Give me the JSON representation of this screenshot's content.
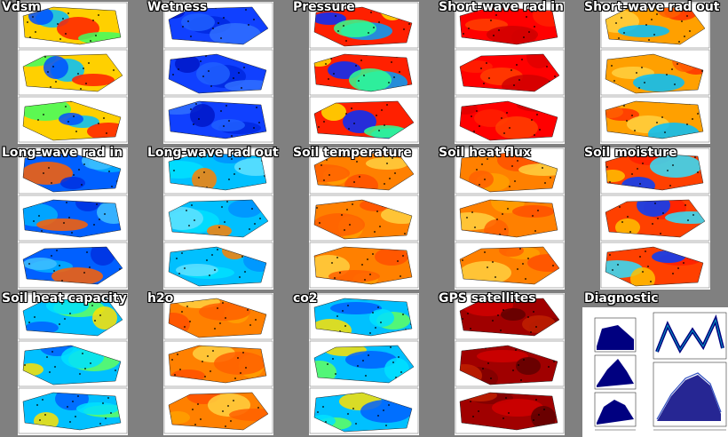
{
  "panels": [
    {
      "title": "Vdsm",
      "scheme": "mixed"
    },
    {
      "title": "Wetness",
      "scheme": "blue"
    },
    {
      "title": "Pressure",
      "scheme": "diag"
    },
    {
      "title": "Short-wave rad in",
      "scheme": "red"
    },
    {
      "title": "Short-wave rad out",
      "scheme": "warmcool"
    },
    {
      "title": "Long-wave rad in",
      "scheme": "bluewarm"
    },
    {
      "title": "Long-wave rad out",
      "scheme": "cyanwarm"
    },
    {
      "title": "Soil temperature",
      "scheme": "orange"
    },
    {
      "title": "Soil heat flux",
      "scheme": "orange"
    },
    {
      "title": "Soil moisture",
      "scheme": "redmix"
    },
    {
      "title": "Soil heat capacity",
      "scheme": "cyanmix"
    },
    {
      "title": "h2o",
      "scheme": "orange"
    },
    {
      "title": "co2",
      "scheme": "cyanmix"
    },
    {
      "title": "GPS satellites",
      "scheme": "darkred"
    },
    {
      "title": "Diagnostic",
      "scheme": "diagnostic"
    }
  ],
  "colors": {
    "background": "#808080",
    "title": "#ffffff",
    "navy": "#000080",
    "map_white": "#ffffff"
  }
}
